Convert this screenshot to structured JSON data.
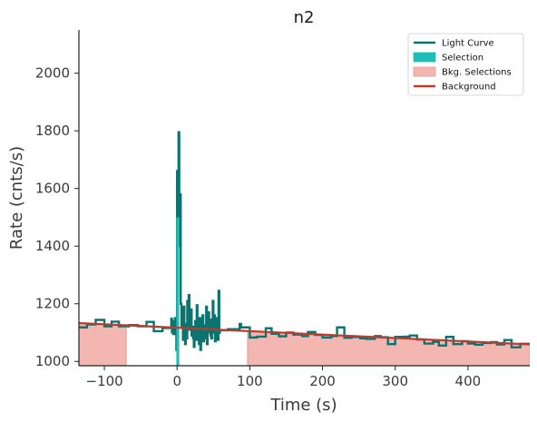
{
  "chart_data": {
    "type": "line",
    "title": "n2",
    "xlabel": "Time (s)",
    "ylabel": "Rate (cnts/s)",
    "xlim": [
      -135,
      485
    ],
    "ylim": [
      985,
      2150
    ],
    "xticks": [
      -100,
      0,
      100,
      200,
      300,
      400
    ],
    "yticks": [
      1000,
      1200,
      1400,
      1600,
      1800,
      2000
    ],
    "xtick_labels": [
      "−100",
      "0",
      "100",
      "200",
      "300",
      "400"
    ],
    "ytick_labels": [
      "1000",
      "1200",
      "1400",
      "1600",
      "1800",
      "2000"
    ],
    "grid": false,
    "legend_position": "top-right",
    "colors": {
      "light_curve": "#0a7470",
      "selection": "#1fbfb8",
      "bkg_selection_fill": "#f4b6b0",
      "bkg_selection_edge": "#e89890",
      "background": "#c0392b"
    },
    "legend": [
      {
        "label": "Light Curve",
        "kind": "line",
        "color": "#0a7470"
      },
      {
        "label": "Selection",
        "kind": "patch",
        "color": "#1fbfb8"
      },
      {
        "label": "Bkg. Selections",
        "kind": "patch",
        "color": "#f4b6b0"
      },
      {
        "label": "Background",
        "kind": "line",
        "color": "#c0392b"
      }
    ],
    "bkg_selections": [
      [
        -135,
        -70
      ],
      [
        97,
        485
      ]
    ],
    "selection": [
      -1,
      3
    ],
    "background_line": {
      "x": [
        -135,
        485
      ],
      "y": [
        1133,
        1059
      ]
    },
    "light_curve": {
      "coarse_edges": [
        -135,
        -124,
        -112,
        -100,
        -90,
        -80,
        -66,
        -54,
        -42,
        -32,
        -20,
        -8
      ],
      "coarse_rates": [
        1118,
        1128,
        1144,
        1122,
        1138,
        1122,
        1126,
        1122,
        1137,
        1105,
        1116
      ],
      "fine_start": -8,
      "fine_step": 1,
      "fine_rates": [
        1148,
        1100,
        1140,
        1095,
        1125,
        1150,
        1110,
        1040,
        1660,
        1500,
        1795,
        1400,
        1580,
        1200,
        1120,
        1160,
        1075,
        1190,
        1100,
        1060,
        1130,
        1080,
        1210,
        1170,
        1230,
        1110,
        1150,
        1180,
        1090,
        1120,
        1080,
        1050,
        1100,
        1140,
        1075,
        1195,
        1085,
        1110,
        1060,
        1150,
        1040,
        1130,
        1090,
        1160,
        1070,
        1100,
        1125,
        1080,
        1190,
        1060,
        1115,
        1170,
        1100,
        1145,
        1090,
        1080,
        1120,
        1210,
        1100,
        1160,
        1070,
        1130,
        1100,
        1150,
        1075,
        1245,
        1100
      ],
      "tail_edges": [
        58,
        70,
        86,
        88,
        100,
        110,
        122,
        130,
        140,
        150,
        160,
        172,
        180,
        190,
        200,
        212,
        220,
        230,
        240,
        252,
        260,
        272,
        280,
        290,
        300,
        312,
        320,
        330,
        340,
        352,
        360,
        370,
        380,
        392,
        400,
        410,
        420,
        432,
        440,
        450,
        460,
        472,
        485
      ],
      "tail_rates": [
        1108,
        1112,
        1130,
        1118,
        1083,
        1086,
        1115,
        1096,
        1087,
        1100,
        1093,
        1088,
        1102,
        1092,
        1083,
        1088,
        1118,
        1082,
        1085,
        1080,
        1078,
        1088,
        1084,
        1060,
        1085,
        1086,
        1090,
        1076,
        1062,
        1068,
        1055,
        1085,
        1060,
        1070,
        1062,
        1058,
        1064,
        1067,
        1059,
        1074,
        1049,
        1061
      ]
    }
  }
}
